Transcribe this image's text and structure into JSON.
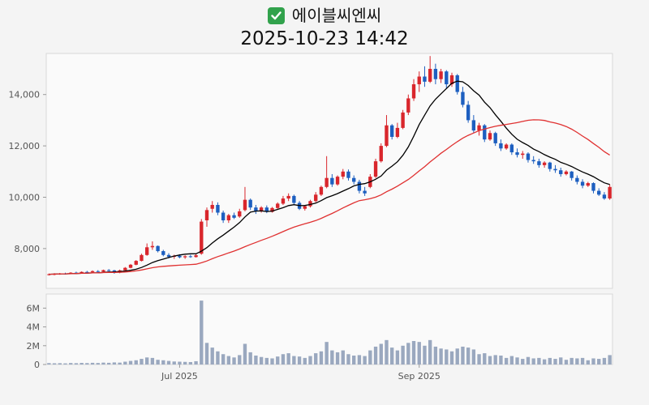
{
  "header": {
    "checkbox_icon": "check",
    "checkbox_color": "#31a24c",
    "title": "에이블씨엔씨",
    "timestamp": "2025-10-23 14:42"
  },
  "chart_data": {
    "type": "candlestick",
    "title": "에이블씨엔씨",
    "subtitle": "2025-10-23 14:42",
    "legend_position": "none",
    "grid": false,
    "price_axis": {
      "range": [
        6450,
        15600
      ],
      "ticks": [
        {
          "value": 8000,
          "label": "8,000"
        },
        {
          "value": 10000,
          "label": "10,000"
        },
        {
          "value": 12000,
          "label": "12,000"
        },
        {
          "value": 14000,
          "label": "14,000"
        }
      ]
    },
    "volume_axis": {
      "range": [
        0,
        7500000
      ],
      "ticks": [
        {
          "value": 0,
          "label": "0"
        },
        {
          "value": 2000000,
          "label": "2M"
        },
        {
          "value": 4000000,
          "label": "4M"
        },
        {
          "value": 6000000,
          "label": "6M"
        }
      ]
    },
    "x_axis": {
      "ticks": [
        {
          "index": 24,
          "label": "Jul 2025"
        },
        {
          "index": 68,
          "label": "Sep 2025"
        }
      ]
    },
    "colors": {
      "up": "#d9262c",
      "down": "#1d5fc0",
      "ma_short": "#000000",
      "ma_long": "#e03131",
      "volume": "#9aa8bf",
      "axis_text": "#555555",
      "pane_border": "#d8d8d8",
      "pane_fill": "#fafafa",
      "background": "#f4f4f4"
    },
    "moving_averages": [
      {
        "name": "ma-short",
        "period": 10,
        "color_key": "ma_short"
      },
      {
        "name": "ma-long",
        "period": 30,
        "color_key": "ma_long"
      }
    ],
    "candles_format": [
      "open",
      "high",
      "low",
      "close",
      "volume"
    ],
    "candles": [
      [
        6990,
        7030,
        6950,
        7000,
        150000
      ],
      [
        7000,
        7040,
        6960,
        7010,
        130000
      ],
      [
        7010,
        7050,
        6980,
        7030,
        140000
      ],
      [
        7030,
        7060,
        6990,
        7020,
        120000
      ],
      [
        7020,
        7080,
        7000,
        7060,
        160000
      ],
      [
        7060,
        7100,
        7020,
        7050,
        140000
      ],
      [
        7050,
        7110,
        7030,
        7090,
        170000
      ],
      [
        7090,
        7130,
        7050,
        7080,
        150000
      ],
      [
        7080,
        7150,
        7060,
        7120,
        180000
      ],
      [
        7120,
        7160,
        7080,
        7100,
        160000
      ],
      [
        7100,
        7180,
        7090,
        7160,
        200000
      ],
      [
        7160,
        7200,
        7110,
        7150,
        180000
      ],
      [
        7150,
        7170,
        7020,
        7060,
        220000
      ],
      [
        7060,
        7180,
        7040,
        7150,
        200000
      ],
      [
        7150,
        7280,
        7130,
        7250,
        300000
      ],
      [
        7250,
        7400,
        7230,
        7370,
        380000
      ],
      [
        7370,
        7550,
        7350,
        7520,
        450000
      ],
      [
        7520,
        7800,
        7500,
        7750,
        600000
      ],
      [
        7750,
        8200,
        7720,
        8050,
        750000
      ],
      [
        8050,
        8280,
        7950,
        8100,
        700000
      ],
      [
        8100,
        8120,
        7850,
        7900,
        500000
      ],
      [
        7900,
        7950,
        7700,
        7750,
        450000
      ],
      [
        7750,
        7820,
        7620,
        7680,
        380000
      ],
      [
        7680,
        7760,
        7600,
        7720,
        320000
      ],
      [
        7720,
        7780,
        7620,
        7660,
        300000
      ],
      [
        7660,
        7740,
        7600,
        7700,
        280000
      ],
      [
        7700,
        7760,
        7640,
        7670,
        260000
      ],
      [
        7670,
        7780,
        7650,
        7740,
        350000
      ],
      [
        7800,
        9150,
        7760,
        9050,
        6800000
      ],
      [
        9100,
        9600,
        8850,
        9500,
        2300000
      ],
      [
        9550,
        9850,
        9400,
        9700,
        1800000
      ],
      [
        9700,
        9800,
        9300,
        9400,
        1400000
      ],
      [
        9400,
        9480,
        9000,
        9100,
        1100000
      ],
      [
        9100,
        9350,
        9000,
        9300,
        900000
      ],
      [
        9300,
        9400,
        9150,
        9200,
        750000
      ],
      [
        9250,
        9550,
        9200,
        9450,
        1000000
      ],
      [
        9500,
        10400,
        9450,
        9900,
        2200000
      ],
      [
        9900,
        9950,
        9500,
        9600,
        1300000
      ],
      [
        9600,
        9700,
        9350,
        9450,
        950000
      ],
      [
        9450,
        9650,
        9400,
        9600,
        800000
      ],
      [
        9600,
        9680,
        9380,
        9430,
        700000
      ],
      [
        9430,
        9620,
        9400,
        9580,
        650000
      ],
      [
        9580,
        9800,
        9550,
        9750,
        850000
      ],
      [
        9750,
        10050,
        9700,
        9950,
        1100000
      ],
      [
        9950,
        10150,
        9850,
        10050,
        1200000
      ],
      [
        10050,
        10100,
        9700,
        9780,
        900000
      ],
      [
        9780,
        9850,
        9500,
        9550,
        850000
      ],
      [
        9550,
        9700,
        9480,
        9650,
        700000
      ],
      [
        9650,
        9900,
        9600,
        9850,
        900000
      ],
      [
        9850,
        10200,
        9800,
        10100,
        1200000
      ],
      [
        10100,
        10450,
        10050,
        10400,
        1400000
      ],
      [
        10400,
        11600,
        10350,
        10750,
        2400000
      ],
      [
        10750,
        10900,
        10400,
        10500,
        1500000
      ],
      [
        10500,
        10850,
        10450,
        10800,
        1300000
      ],
      [
        10800,
        11100,
        10700,
        11000,
        1500000
      ],
      [
        11000,
        11080,
        10650,
        10750,
        1100000
      ],
      [
        10750,
        10850,
        10500,
        10600,
        950000
      ],
      [
        10600,
        10680,
        10150,
        10250,
        1000000
      ],
      [
        10250,
        10400,
        10050,
        10150,
        900000
      ],
      [
        10400,
        10900,
        10350,
        10800,
        1500000
      ],
      [
        10800,
        11500,
        10750,
        11400,
        1900000
      ],
      [
        11400,
        12100,
        11350,
        12000,
        2200000
      ],
      [
        12000,
        13200,
        11950,
        12800,
        2600000
      ],
      [
        12800,
        12850,
        12250,
        12350,
        1800000
      ],
      [
        12350,
        12900,
        12300,
        12700,
        1500000
      ],
      [
        12700,
        13400,
        12650,
        13300,
        2000000
      ],
      [
        13300,
        14000,
        13200,
        13850,
        2300000
      ],
      [
        13850,
        14600,
        13750,
        14400,
        2500000
      ],
      [
        14400,
        14900,
        14100,
        14700,
        2400000
      ],
      [
        14700,
        15100,
        14300,
        14500,
        2000000
      ],
      [
        14500,
        15500,
        14450,
        15000,
        2600000
      ],
      [
        15000,
        15200,
        14400,
        14600,
        1900000
      ],
      [
        14600,
        15000,
        14450,
        14900,
        1700000
      ],
      [
        14900,
        14950,
        14250,
        14400,
        1600000
      ],
      [
        14400,
        14850,
        14300,
        14750,
        1400000
      ],
      [
        14750,
        14800,
        14000,
        14100,
        1700000
      ],
      [
        14100,
        14300,
        13500,
        13600,
        1900000
      ],
      [
        13600,
        13750,
        12900,
        13000,
        1800000
      ],
      [
        13000,
        13200,
        12500,
        12600,
        1600000
      ],
      [
        12600,
        12900,
        12400,
        12800,
        1100000
      ],
      [
        12800,
        12850,
        12150,
        12250,
        1200000
      ],
      [
        12250,
        12600,
        12200,
        12500,
        900000
      ],
      [
        12500,
        12550,
        12000,
        12100,
        1000000
      ],
      [
        12100,
        12250,
        11800,
        11900,
        950000
      ],
      [
        11900,
        12100,
        11850,
        12050,
        700000
      ],
      [
        12050,
        12100,
        11650,
        11750,
        900000
      ],
      [
        11750,
        11900,
        11550,
        11650,
        750000
      ],
      [
        11650,
        11800,
        11500,
        11700,
        600000
      ],
      [
        11700,
        11750,
        11350,
        11450,
        800000
      ],
      [
        11450,
        11600,
        11300,
        11400,
        650000
      ],
      [
        11400,
        11500,
        11150,
        11250,
        700000
      ],
      [
        11250,
        11400,
        11150,
        11350,
        550000
      ],
      [
        11350,
        11380,
        11000,
        11100,
        700000
      ],
      [
        11100,
        11250,
        10950,
        11050,
        600000
      ],
      [
        11050,
        11150,
        10800,
        10900,
        750000
      ],
      [
        10900,
        11050,
        10850,
        11000,
        500000
      ],
      [
        11000,
        11020,
        10650,
        10750,
        700000
      ],
      [
        10750,
        10850,
        10500,
        10600,
        650000
      ],
      [
        10600,
        10700,
        10350,
        10450,
        700000
      ],
      [
        10450,
        10600,
        10400,
        10550,
        450000
      ],
      [
        10550,
        10580,
        10150,
        10250,
        650000
      ],
      [
        10250,
        10350,
        10050,
        10100,
        600000
      ],
      [
        10100,
        10200,
        9900,
        9950,
        700000
      ],
      [
        9950,
        10500,
        9900,
        10400,
        1000000
      ]
    ]
  }
}
